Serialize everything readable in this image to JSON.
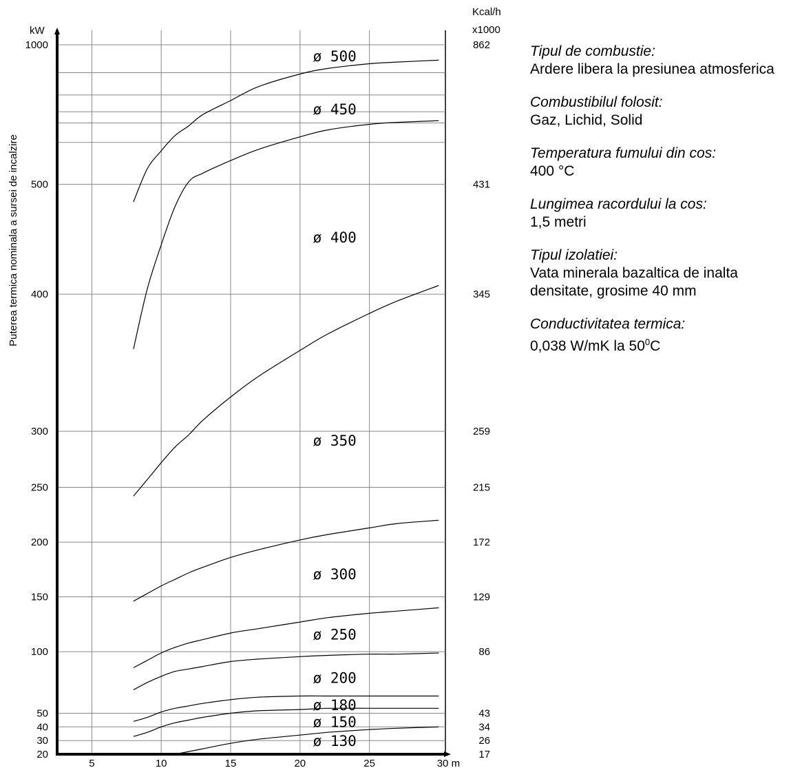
{
  "chart_data": {
    "type": "line",
    "ylabel": "Puterea termica nominala a sursei de incalzire",
    "y_unit_left": "kW",
    "y_unit_right": [
      "Kcal/h",
      "x1000"
    ],
    "x_unit": "m",
    "xlim": [
      2.5,
      30
    ],
    "x_ticks": [
      5,
      10,
      15,
      20,
      25,
      30
    ],
    "x_tick_labels": [
      "5",
      "10",
      "15",
      "20",
      "25",
      "30 m"
    ],
    "grid": true,
    "y_ticks_left": [
      {
        "label": "1000",
        "value": 1000
      },
      {
        "label": "500",
        "value": 500
      },
      {
        "label": "400",
        "value": 400
      },
      {
        "label": "300",
        "value": 300
      },
      {
        "label": "250",
        "value": 250
      },
      {
        "label": "200",
        "value": 200
      },
      {
        "label": "150",
        "value": 150
      },
      {
        "label": "100",
        "value": 100
      },
      {
        "label": "50",
        "value": 50
      },
      {
        "label": "40",
        "value": 40
      },
      {
        "label": "30",
        "value": 30
      },
      {
        "label": "20",
        "value": 20
      }
    ],
    "y_ticks_right": [
      {
        "label": "862",
        "value": 1000
      },
      {
        "label": "431",
        "value": 500
      },
      {
        "label": "345",
        "value": 400
      },
      {
        "label": "259",
        "value": 300
      },
      {
        "label": "215",
        "value": 250
      },
      {
        "label": "172",
        "value": 200
      },
      {
        "label": "129",
        "value": 150
      },
      {
        "label": "86",
        "value": 100
      },
      {
        "label": "43",
        "value": 50
      },
      {
        "label": "34",
        "value": 40
      },
      {
        "label": "26",
        "value": 30
      },
      {
        "label": "17",
        "value": 20
      }
    ],
    "y_scale_map": [
      [
        20,
        0.0
      ],
      [
        30,
        0.0246
      ],
      [
        40,
        0.0494
      ],
      [
        50,
        0.074
      ],
      [
        100,
        0.185
      ],
      [
        150,
        0.2841
      ],
      [
        200,
        0.3827
      ],
      [
        250,
        0.4816
      ],
      [
        300,
        0.5828
      ],
      [
        400,
        0.8301
      ],
      [
        500,
        1.0285
      ],
      [
        1000,
        1.2803
      ]
    ],
    "extra_gridlines": [
      650,
      720,
      760,
      820,
      900
    ],
    "series": [
      {
        "label": "ø 500",
        "label_at": [
          22.5,
          960
        ],
        "x": [
          8,
          9,
          10,
          11,
          12,
          13,
          15,
          17,
          20,
          22,
          25,
          27,
          30
        ],
        "y": [
          484,
          556,
          620,
          675,
          710,
          750,
          800,
          850,
          895,
          915,
          932,
          938,
          945
        ]
      },
      {
        "label": "ø 450",
        "label_at": [
          22.5,
          770
        ],
        "x": [
          8,
          9,
          10,
          11,
          12,
          13,
          15,
          17,
          20,
          22,
          25,
          27,
          30
        ],
        "y": [
          360,
          405,
          445,
          480,
          510,
          540,
          585,
          625,
          670,
          695,
          715,
          722,
          728
        ]
      },
      {
        "label": "ø 400",
        "label_at": [
          22.5,
          452
        ],
        "x": [
          8,
          9,
          10,
          11,
          12,
          13,
          15,
          17,
          20,
          22,
          25,
          27,
          30
        ],
        "y": [
          242,
          257,
          272,
          286,
          297,
          308,
          325,
          340,
          359,
          371,
          386,
          395,
          408
        ]
      },
      {
        "label": "ø 350",
        "label_at": [
          22.5,
          292
        ],
        "x": [
          8,
          9,
          10,
          11,
          12,
          13,
          15,
          17,
          20,
          22,
          25,
          27,
          30
        ],
        "y": [
          146,
          153,
          160,
          166,
          172,
          177,
          186,
          193,
          202,
          207,
          213,
          217,
          220
        ]
      },
      {
        "label": "ø 300",
        "label_at": [
          22.5,
          171
        ],
        "x": [
          8,
          9,
          10,
          11,
          12,
          13,
          15,
          17,
          20,
          22,
          25,
          27,
          30
        ],
        "y": [
          87,
          93,
          99,
          104,
          108,
          111,
          117,
          121,
          127,
          131,
          135,
          137,
          140
        ]
      },
      {
        "label": "ø 250",
        "label_at": [
          22.5,
          116
        ],
        "x": [
          8,
          9,
          10,
          11,
          12,
          13,
          15,
          17,
          20,
          22,
          25,
          27,
          30
        ],
        "y": [
          69,
          75,
          80,
          84,
          86,
          88,
          92,
          94,
          96,
          97,
          98,
          98,
          99
        ]
      },
      {
        "label": "ø 200",
        "label_at": [
          22.5,
          79
        ],
        "x": [
          8,
          9,
          10,
          11,
          12,
          13,
          15,
          17,
          20,
          22,
          25,
          27,
          30
        ],
        "y": [
          44,
          47,
          51,
          54,
          56,
          58,
          61,
          63,
          64,
          64,
          64,
          64,
          64
        ]
      },
      {
        "label": "ø 180",
        "label_at": [
          22.5,
          57
        ],
        "x": [
          8,
          9,
          10,
          11,
          12,
          13,
          15,
          17,
          20,
          22,
          25,
          27,
          30
        ],
        "y": [
          33,
          36,
          40,
          43,
          45,
          47,
          50,
          52,
          53,
          54,
          54,
          54,
          54
        ]
      },
      {
        "label": "ø 150",
        "label_at": [
          22.5,
          44
        ],
        "x": [
          11,
          13,
          15,
          17,
          20,
          22,
          25,
          27,
          30
        ],
        "y": [
          20,
          24,
          28,
          31,
          34,
          36,
          38,
          39,
          40
        ]
      },
      {
        "label": "ø 130",
        "label_at": [
          22.5,
          30
        ],
        "x": [],
        "y": []
      }
    ]
  },
  "info": [
    {
      "label": "Tipul de combustie:",
      "value": "Ardere libera la presiunea atmosferica"
    },
    {
      "label": "Combustibilul folosit:",
      "value": "Gaz, Lichid, Solid"
    },
    {
      "label": "Temperatura fumului din cos:",
      "value": "400 °C"
    },
    {
      "label": "Lungimea racordului la cos:",
      "value": "1,5 metri"
    },
    {
      "label": "Tipul izolatiei:",
      "value": "Vata minerala bazaltica de inalta densitate, grosime 40 mm"
    },
    {
      "label": "Conductivitatea termica:",
      "value": "0,038 W/mK la 50",
      "sup": "0",
      "suffix": "C"
    }
  ]
}
